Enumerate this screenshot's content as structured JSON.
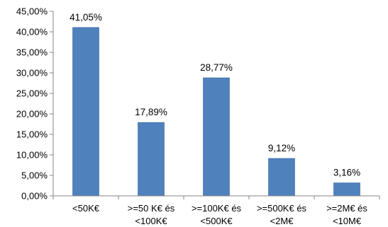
{
  "chart_data": {
    "type": "bar",
    "categories": [
      [
        "<50K€"
      ],
      [
        ">=50 K€ és",
        "<100K€"
      ],
      [
        ">=100K€ és",
        "<500K€"
      ],
      [
        ">=500K€ és",
        "<2M€"
      ],
      [
        ">=2M€ és",
        "<10M€"
      ]
    ],
    "values": [
      41.05,
      17.89,
      28.77,
      9.12,
      3.16
    ],
    "value_labels": [
      "41,05%",
      "17,89%",
      "28,77%",
      "9,12%",
      "3,16%"
    ],
    "ylim": [
      0,
      45
    ],
    "y_ticks": [
      0,
      5,
      10,
      15,
      20,
      25,
      30,
      35,
      40,
      45
    ],
    "y_tick_labels": [
      "0,00%",
      "5,00%",
      "10,00%",
      "15,00%",
      "20,00%",
      "25,00%",
      "30,00%",
      "35,00%",
      "40,00%",
      "45,00%"
    ],
    "grid": false,
    "legend": "none",
    "colors": {
      "bar": "#4f81bd",
      "bar_edge": "#3a6aa5",
      "axis": "#868686"
    }
  }
}
